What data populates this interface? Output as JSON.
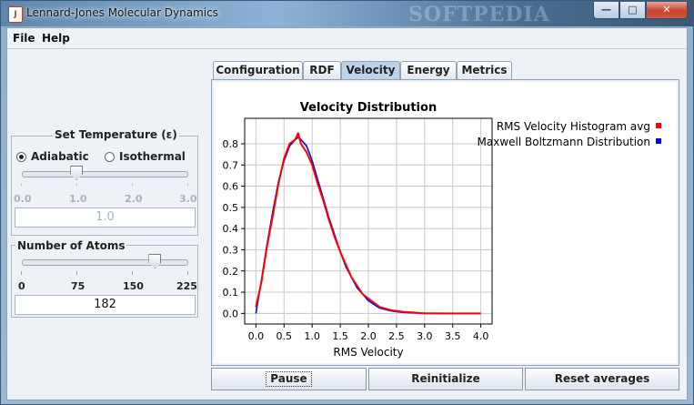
{
  "window": {
    "title": "Lennard-Jones Molecular Dynamics",
    "watermark": "SOFTPEDIA",
    "controls": {
      "minimize": "—",
      "maximize": "□",
      "close": "✕"
    }
  },
  "menu": {
    "file": "File",
    "help": "Help"
  },
  "temperature": {
    "title": "Set Temperature (ε)",
    "adiabatic": "Adiabatic",
    "isothermal": "Isothermal",
    "mode": "Adiabatic",
    "ticks": [
      "0.0",
      "1.0",
      "2.0",
      "3.0"
    ],
    "value": "1.0",
    "slider_fraction": 0.333
  },
  "atoms": {
    "title": "Number of Atoms",
    "ticks": [
      "0",
      "75",
      "150",
      "225"
    ],
    "value": "182",
    "slider_fraction": 0.809
  },
  "tabs": [
    "Configuration",
    "RDF",
    "Velocity",
    "Energy",
    "Metrics"
  ],
  "active_tab": "Velocity",
  "buttons": {
    "pause": "Pause",
    "reinitialize": "Reinitialize",
    "reset": "Reset averages"
  },
  "colors": {
    "histogram": "#ff0000",
    "maxwell": "#0000ff"
  },
  "chart_data": {
    "type": "line",
    "title": "Velocity Distribution",
    "xlabel": "RMS Velocity",
    "ylabel": "",
    "xlim": [
      -0.2,
      4.2
    ],
    "ylim": [
      -0.05,
      0.92
    ],
    "xticks": [
      "0.0",
      "0.5",
      "1.0",
      "1.5",
      "2.0",
      "2.5",
      "3.0",
      "3.5",
      "4.0"
    ],
    "yticks": [
      "0.0",
      "0.1",
      "0.2",
      "0.3",
      "0.4",
      "0.5",
      "0.6",
      "0.7",
      "0.8"
    ],
    "grid": true,
    "legend_position": "top-right",
    "x": [
      0.0,
      0.1,
      0.2,
      0.3,
      0.4,
      0.5,
      0.6,
      0.7,
      0.75,
      0.8,
      0.9,
      1.0,
      1.1,
      1.2,
      1.3,
      1.4,
      1.5,
      1.6,
      1.7,
      1.8,
      1.9,
      2.0,
      2.2,
      2.4,
      2.6,
      2.8,
      3.0,
      3.5,
      4.0
    ],
    "series": [
      {
        "name": "RMS Velocity Histogram avg",
        "values": [
          0.03,
          0.15,
          0.32,
          0.46,
          0.61,
          0.73,
          0.8,
          0.82,
          0.85,
          0.8,
          0.76,
          0.7,
          0.61,
          0.53,
          0.44,
          0.36,
          0.29,
          0.23,
          0.17,
          0.13,
          0.09,
          0.07,
          0.03,
          0.015,
          0.008,
          0.004,
          0.0,
          0.0,
          0.0
        ]
      },
      {
        "name": "Maxwell Boltzmann Distribution",
        "values": [
          0.0,
          0.16,
          0.33,
          0.48,
          0.62,
          0.72,
          0.79,
          0.82,
          0.83,
          0.82,
          0.79,
          0.72,
          0.63,
          0.54,
          0.45,
          0.37,
          0.29,
          0.22,
          0.17,
          0.12,
          0.09,
          0.06,
          0.025,
          0.012,
          0.005,
          0.002,
          0.001,
          0.0,
          0.0
        ]
      }
    ]
  }
}
